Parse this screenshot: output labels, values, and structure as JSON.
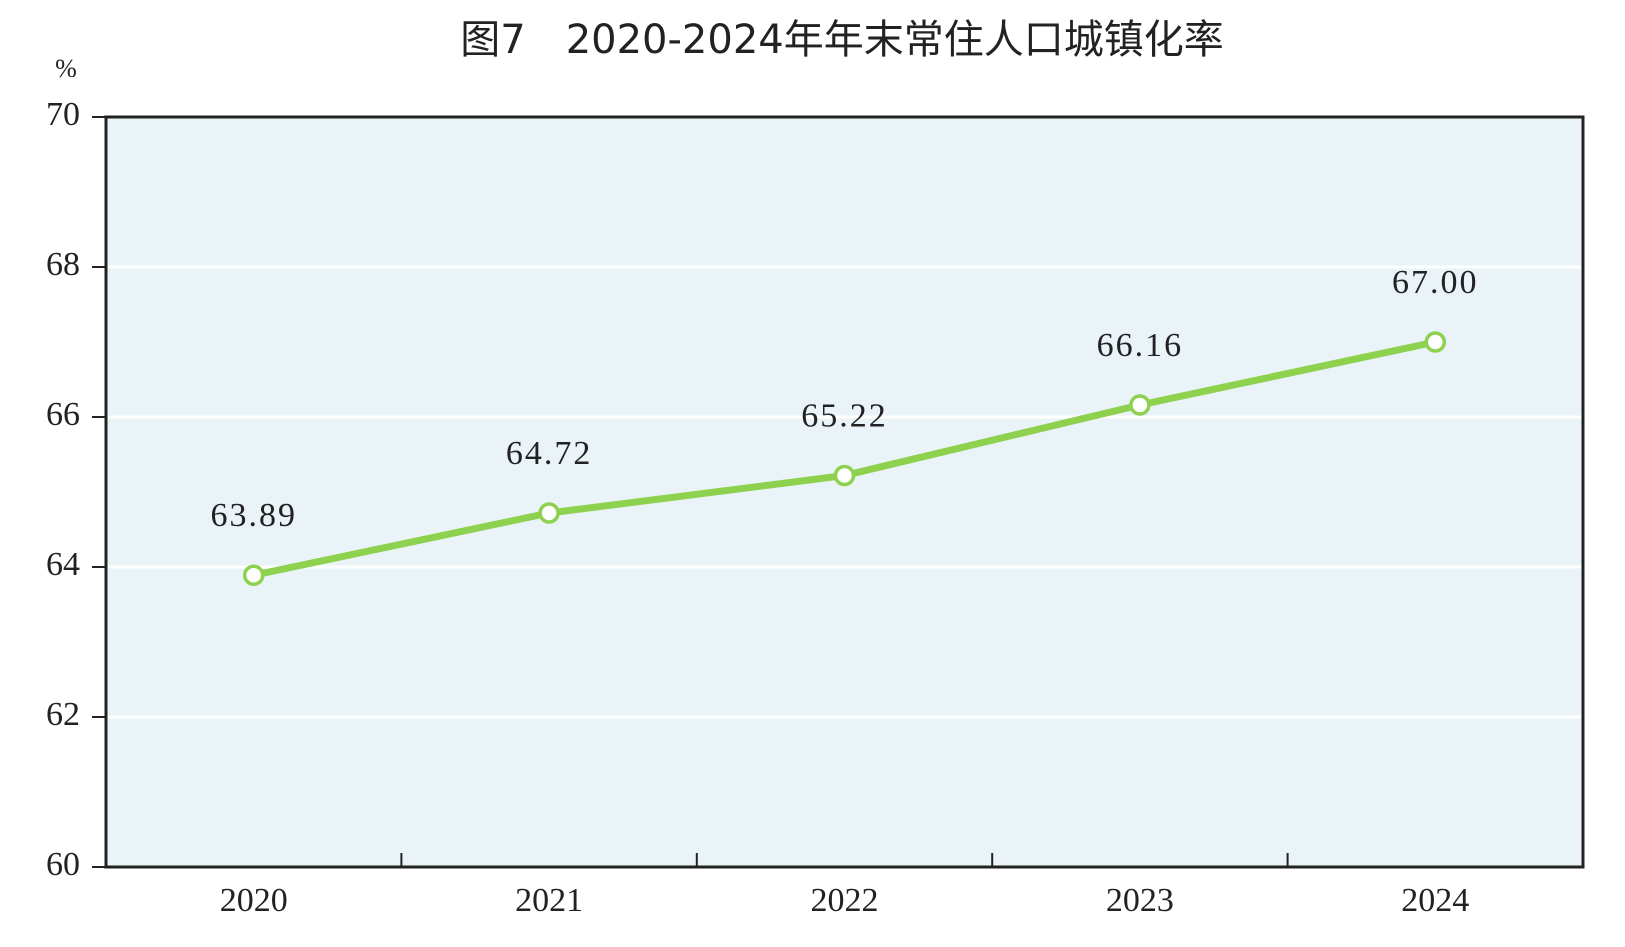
{
  "chart_data": {
    "type": "line",
    "title": "图7　2020-2024年年末常住人口城镇化率",
    "y_label": "%",
    "categories": [
      "2020",
      "2021",
      "2022",
      "2023",
      "2024"
    ],
    "series": [
      {
        "name": "年末常住人口城镇化率",
        "color": "#8dd14f",
        "values": [
          63.89,
          64.72,
          65.22,
          66.16,
          67
        ],
        "value_labels": [
          "63.89",
          "64.72",
          "65.22",
          "66.16",
          "67.00"
        ]
      }
    ],
    "ylim": [
      60,
      70
    ],
    "yticks": [
      60,
      62,
      64,
      66,
      68,
      70
    ],
    "grid": true,
    "background": "#eaf4f8"
  }
}
